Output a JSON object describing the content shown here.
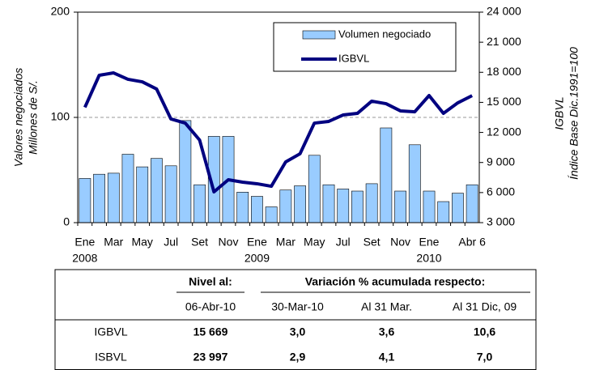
{
  "chart_data": {
    "type": "bar-line",
    "y_label": [
      "Valores negociados",
      "Millones de S/."
    ],
    "y2_label": [
      "IGBVL",
      "Índice Base Dic.1991=100"
    ],
    "categories": [
      "Ene",
      null,
      "Mar",
      null,
      "May",
      null,
      "Jul",
      null,
      "Set",
      null,
      "Nov",
      null,
      "Ene",
      null,
      "Mar",
      null,
      "May",
      null,
      "Jul",
      null,
      "Set",
      null,
      "Nov",
      null,
      "Ene",
      null,
      null,
      "Abr 6"
    ],
    "years": [
      "2008",
      "2009",
      "2010"
    ],
    "ylim": [
      0,
      200
    ],
    "yticks": [
      0,
      100,
      200
    ],
    "y2lim": [
      3000,
      24000
    ],
    "y2ticks": [
      {
        "value": 3000,
        "label": "3 000"
      },
      {
        "value": 6000,
        "label": "6 000"
      },
      {
        "value": 9000,
        "label": "9 000"
      },
      {
        "value": 12000,
        "label": "12 000"
      },
      {
        "value": 15000,
        "label": "15 000"
      },
      {
        "value": 18000,
        "label": "18 000"
      },
      {
        "value": 21000,
        "label": "21 000"
      },
      {
        "value": 24000,
        "label": "24 000"
      }
    ],
    "grid": true,
    "legend": "upper right",
    "series": [
      {
        "name": "Volumen negociado",
        "type": "bar",
        "color": "#99ccff",
        "values": [
          42,
          46,
          47,
          65,
          53,
          61,
          54,
          97,
          36,
          82,
          82,
          29,
          25,
          15,
          31,
          35,
          64,
          36,
          32,
          30,
          37,
          90,
          30,
          74,
          30,
          20,
          28,
          36
        ]
      },
      {
        "name": "IGBVL",
        "type": "line",
        "axis": "y2",
        "color": "#000080",
        "values": [
          14500,
          17700,
          17940,
          17300,
          17050,
          16330,
          13340,
          12930,
          11240,
          6070,
          7280,
          7040,
          6880,
          6630,
          9060,
          9870,
          12930,
          13100,
          13740,
          13900,
          15120,
          14870,
          14150,
          14060,
          15680,
          13900,
          14950,
          15669
        ]
      }
    ]
  },
  "table": {
    "header": [
      "Nivel al:",
      "Variación % acumulada respecto:"
    ],
    "subheader": [
      "06-Abr-10",
      "30-Mar-10",
      "Al 31 Mar.",
      "Al 31 Dic, 09"
    ],
    "rows": [
      [
        "IGBVL",
        "15 669",
        "3,0",
        "3,6",
        "10,6"
      ],
      [
        "ISBVL",
        "23 997",
        "2,9",
        "4,1",
        "7,0"
      ]
    ]
  }
}
